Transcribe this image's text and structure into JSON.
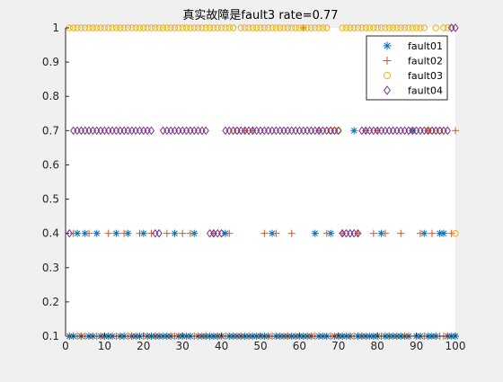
{
  "chart_data": {
    "type": "scatter",
    "title": "真实故障是fault3   rate=0.77",
    "xlabel": "",
    "ylabel": "",
    "xlim": [
      0,
      100
    ],
    "ylim": [
      0.1,
      1
    ],
    "xticks": [
      0,
      10,
      20,
      30,
      40,
      50,
      60,
      70,
      80,
      90,
      100
    ],
    "yticks": [
      0.1,
      0.2,
      0.3,
      0.4,
      0.5,
      0.6,
      0.7,
      0.8,
      0.9,
      1
    ],
    "grid": false,
    "legend_position": "top-right",
    "x": [
      1,
      2,
      3,
      4,
      5,
      6,
      7,
      8,
      9,
      10,
      11,
      12,
      13,
      14,
      15,
      16,
      17,
      18,
      19,
      20,
      21,
      22,
      23,
      24,
      25,
      26,
      27,
      28,
      29,
      30,
      31,
      32,
      33,
      34,
      35,
      36,
      37,
      38,
      39,
      40,
      41,
      42,
      43,
      44,
      45,
      46,
      47,
      48,
      49,
      50,
      51,
      52,
      53,
      54,
      55,
      56,
      57,
      58,
      59,
      60,
      61,
      62,
      63,
      64,
      65,
      66,
      67,
      68,
      69,
      70,
      71,
      72,
      73,
      74,
      75,
      76,
      77,
      78,
      79,
      80,
      81,
      82,
      83,
      84,
      85,
      86,
      87,
      88,
      89,
      90,
      91,
      92,
      93,
      94,
      95,
      96,
      97,
      98,
      99,
      100
    ],
    "series": [
      {
        "name": "fault01",
        "marker": "asterisk",
        "color": "#0072bd",
        "values": [
          0.1,
          0.1,
          0.4,
          0.1,
          0.4,
          0.1,
          0.1,
          0.4,
          0.1,
          0.1,
          0.1,
          0.1,
          0.4,
          0.1,
          0.1,
          0.4,
          0.1,
          0.1,
          0.1,
          0.4,
          0.1,
          0.1,
          0.1,
          0.1,
          0.1,
          0.1,
          0.1,
          0.4,
          0.1,
          0.1,
          0.1,
          0.1,
          0.4,
          0.1,
          0.1,
          0.1,
          0.1,
          0.1,
          0.1,
          0.1,
          0.4,
          0.1,
          0.1,
          0.1,
          0.1,
          0.1,
          0.1,
          0.1,
          0.1,
          0.1,
          0.1,
          0.1,
          0.4,
          0.1,
          0.1,
          0.1,
          0.1,
          0.1,
          0.1,
          0.1,
          0.1,
          0.1,
          0.1,
          0.4,
          0.1,
          0.1,
          0.1,
          0.4,
          0.1,
          0.1,
          0.1,
          0.1,
          0.1,
          0.7,
          0.1,
          0.1,
          0.1,
          0.1,
          0.1,
          0.1,
          0.4,
          0.1,
          0.1,
          0.1,
          0.1,
          0.1,
          0.1,
          0.1,
          0.7,
          0.1,
          0.1,
          0.4,
          0.1,
          0.1,
          0.1,
          0.4,
          0.4,
          0.1,
          0.1,
          0.1
        ]
      },
      {
        "name": "fault02",
        "marker": "plus",
        "color": "#d95319",
        "values": [
          0.1,
          0.4,
          0.1,
          0.1,
          0.1,
          0.4,
          0.1,
          0.1,
          0.1,
          0.1,
          0.4,
          0.1,
          0.1,
          0.1,
          0.4,
          0.1,
          0.1,
          0.1,
          0.4,
          0.1,
          0.1,
          0.4,
          0.1,
          0.1,
          0.1,
          0.4,
          0.1,
          0.1,
          0.1,
          0.4,
          0.1,
          0.4,
          0.1,
          0.1,
          0.1,
          0.1,
          0.1,
          0.4,
          0.1,
          0.1,
          0.1,
          0.4,
          0.1,
          0.1,
          0.1,
          0.7,
          0.1,
          0.7,
          0.1,
          0.1,
          0.4,
          0.1,
          0.1,
          0.4,
          0.1,
          0.1,
          0.1,
          0.4,
          0.1,
          0.1,
          1,
          0.1,
          0.1,
          0.1,
          0.7,
          0.1,
          0.4,
          0.1,
          0.1,
          0.1,
          0.4,
          0.1,
          0.1,
          0.1,
          0.4,
          0.1,
          0.7,
          0.1,
          0.4,
          0.7,
          0.1,
          0.4,
          0.1,
          0.1,
          0.1,
          0.4,
          0.1,
          0.1,
          0.7,
          0.1,
          0.4,
          0.1,
          0.7,
          0.4,
          0.1,
          0.1,
          0.1,
          0.1,
          0.4,
          0.7
        ]
      },
      {
        "name": "fault03",
        "marker": "circle",
        "color": "#edb120",
        "values": [
          1,
          1,
          1,
          1,
          1,
          1,
          1,
          1,
          1,
          1,
          1,
          1,
          1,
          1,
          1,
          1,
          1,
          1,
          1,
          1,
          1,
          1,
          1,
          1,
          1,
          1,
          1,
          1,
          1,
          1,
          1,
          1,
          1,
          1,
          1,
          1,
          1,
          1,
          1,
          1,
          1,
          1,
          1,
          0.7,
          1,
          1,
          1,
          1,
          1,
          1,
          1,
          1,
          1,
          1,
          1,
          1,
          1,
          1,
          1,
          1,
          1,
          1,
          1,
          1,
          1,
          1,
          1,
          0.7,
          0.7,
          0.7,
          1,
          1,
          1,
          1,
          1,
          1,
          1,
          1,
          1,
          1,
          1,
          1,
          1,
          1,
          1,
          1,
          1,
          1,
          1,
          1,
          1,
          1,
          0.7,
          0.7,
          1,
          0.7,
          1,
          1,
          1,
          0.4
        ]
      },
      {
        "name": "fault04",
        "marker": "diamond",
        "color": "#7e2f8e",
        "values": [
          0.4,
          0.7,
          0.7,
          0.7,
          0.7,
          0.7,
          0.7,
          0.7,
          0.7,
          0.7,
          0.7,
          0.7,
          0.7,
          0.7,
          0.7,
          0.7,
          0.7,
          0.7,
          0.7,
          0.7,
          0.7,
          0.7,
          0.4,
          0.4,
          0.7,
          0.7,
          0.7,
          0.7,
          0.7,
          0.7,
          0.7,
          0.7,
          0.7,
          0.7,
          0.7,
          0.7,
          0.4,
          0.4,
          0.4,
          0.4,
          0.7,
          0.7,
          0.7,
          0.7,
          0.7,
          0.7,
          0.7,
          0.7,
          0.7,
          0.7,
          0.7,
          0.7,
          0.7,
          0.7,
          0.7,
          0.7,
          0.7,
          0.7,
          0.7,
          0.7,
          0.7,
          0.7,
          0.7,
          0.7,
          0.7,
          0.7,
          0.7,
          0.7,
          0.7,
          0.7,
          0.4,
          0.4,
          0.4,
          0.4,
          0.4,
          0.7,
          0.7,
          0.7,
          0.7,
          0.7,
          0.7,
          0.7,
          0.7,
          0.7,
          0.7,
          0.7,
          0.7,
          0.7,
          0.7,
          0.7,
          0.7,
          0.7,
          0.7,
          0.7,
          0.7,
          0.7,
          0.7,
          0.7,
          1,
          1
        ]
      }
    ]
  }
}
